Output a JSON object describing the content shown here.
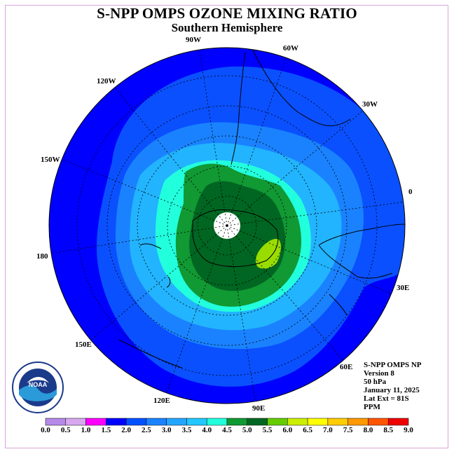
{
  "title": "S-NPP OMPS OZONE MIXING RATIO",
  "subtitle": "Southern Hemisphere",
  "longitude_labels": {
    "lon_90w": "90W",
    "lon_60w": "60W",
    "lon_120w": "120W",
    "lon_30w": "30W",
    "lon_150w": "150W",
    "lon_0": "0",
    "lon_180": "180",
    "lon_30e": "30E",
    "lon_150e": "150E",
    "lon_60e": "60E",
    "lon_120e": "120E",
    "lon_90e": "90E"
  },
  "info": {
    "instrument": "S-NPP OMPS NP",
    "version": "Version 8",
    "level": "50 hPa",
    "date": "January 11, 2025",
    "lat_ext": "Lat Ext = 81S",
    "units": "PPM"
  },
  "logo": {
    "text": "NOAA",
    "ring_text": "NATIONAL OCEANIC AND ATMOSPHERIC ADMINISTRATION · U.S. DEPARTMENT OF COMMERCE"
  },
  "colorbar": {
    "ticks": [
      "0.0",
      "0.5",
      "1.0",
      "1.5",
      "2.0",
      "2.5",
      "3.0",
      "3.5",
      "4.0",
      "4.5",
      "5.0",
      "5.5",
      "6.0",
      "6.5",
      "7.0",
      "7.5",
      "8.0",
      "8.5",
      "9.0"
    ],
    "colors": [
      "#b58ae8",
      "#d7a8f0",
      "#ff00ff",
      "#0000ff",
      "#0050ff",
      "#1a82ff",
      "#22a6ff",
      "#22c8ff",
      "#22ffdd",
      "#119933",
      "#006622",
      "#66cc00",
      "#ccee00",
      "#ffff00",
      "#ffcc00",
      "#ff9900",
      "#ff5500",
      "#ee0000",
      "#996644"
    ]
  },
  "colors": {
    "level_2_0": "#0000ff",
    "level_2_5": "#0a50ff",
    "level_3_0": "#1a82ff",
    "level_3_5": "#22b4ff",
    "level_4_0": "#22ffdd",
    "level_4_5": "#119933",
    "level_5_0": "#006622",
    "level_5_5": "#99dd00",
    "pole_fill": "#ffffff"
  }
}
